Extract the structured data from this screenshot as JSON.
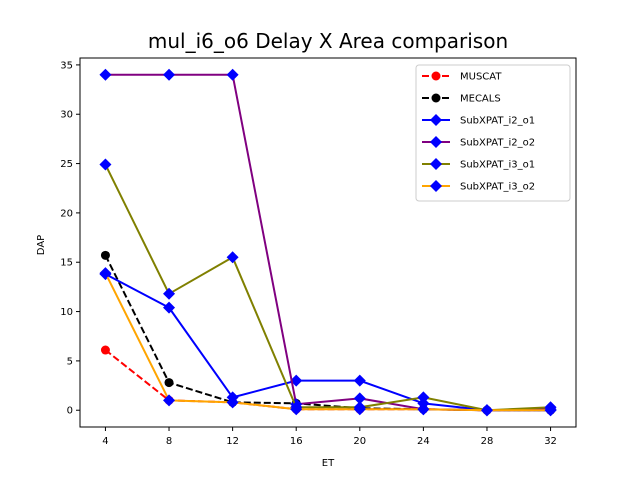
{
  "chart_data": {
    "type": "line",
    "title": "mul_i6_o6 Delay X Area comparison",
    "xlabel": "ET",
    "ylabel": "DAP",
    "x": [
      4,
      8,
      12,
      16,
      20,
      24,
      28,
      32
    ],
    "xlim": [
      2.4,
      33.6
    ],
    "ylim": [
      -1.7,
      35.7
    ],
    "xticks": [
      4,
      8,
      12,
      16,
      20,
      24,
      28,
      32
    ],
    "yticks": [
      0,
      5,
      10,
      15,
      20,
      25,
      30,
      35
    ],
    "legend_position": "top-right",
    "series": [
      {
        "name": "MUSCAT",
        "values": [
          6.1,
          1.0,
          0.8,
          0.1,
          0.1,
          0.1,
          0.0,
          0.0
        ],
        "color": "#ff0000",
        "dash": "dashed",
        "marker": "circle",
        "marker_color": "#ff0000"
      },
      {
        "name": "MECALS",
        "values": [
          15.7,
          2.8,
          0.8,
          0.7,
          0.2,
          0.1,
          0.0,
          0.0
        ],
        "color": "#000000",
        "dash": "dashed",
        "marker": "circle",
        "marker_color": "#000000"
      },
      {
        "name": "SubXPAT_i2_o1",
        "values": [
          13.8,
          10.4,
          1.3,
          3.0,
          3.0,
          0.7,
          0.0,
          0.0
        ],
        "color": "#0000ff",
        "dash": "solid",
        "marker": "diamond",
        "marker_color": "#0000ff"
      },
      {
        "name": "SubXPAT_i2_o2",
        "values": [
          34.0,
          34.0,
          34.0,
          0.6,
          1.2,
          0.1,
          0.0,
          0.1
        ],
        "color": "#800080",
        "dash": "solid",
        "marker": "diamond",
        "marker_color": "#0000ff"
      },
      {
        "name": "SubXPAT_i3_o1",
        "values": [
          24.9,
          11.8,
          15.5,
          0.3,
          0.3,
          1.3,
          0.0,
          0.3
        ],
        "color": "#808000",
        "dash": "solid",
        "marker": "diamond",
        "marker_color": "#0000ff"
      },
      {
        "name": "SubXPAT_i3_o2",
        "values": [
          13.9,
          1.0,
          0.8,
          0.1,
          0.1,
          0.1,
          0.0,
          0.0
        ],
        "color": "#ffa500",
        "dash": "solid",
        "marker": "diamond",
        "marker_color": "#0000ff"
      }
    ]
  }
}
